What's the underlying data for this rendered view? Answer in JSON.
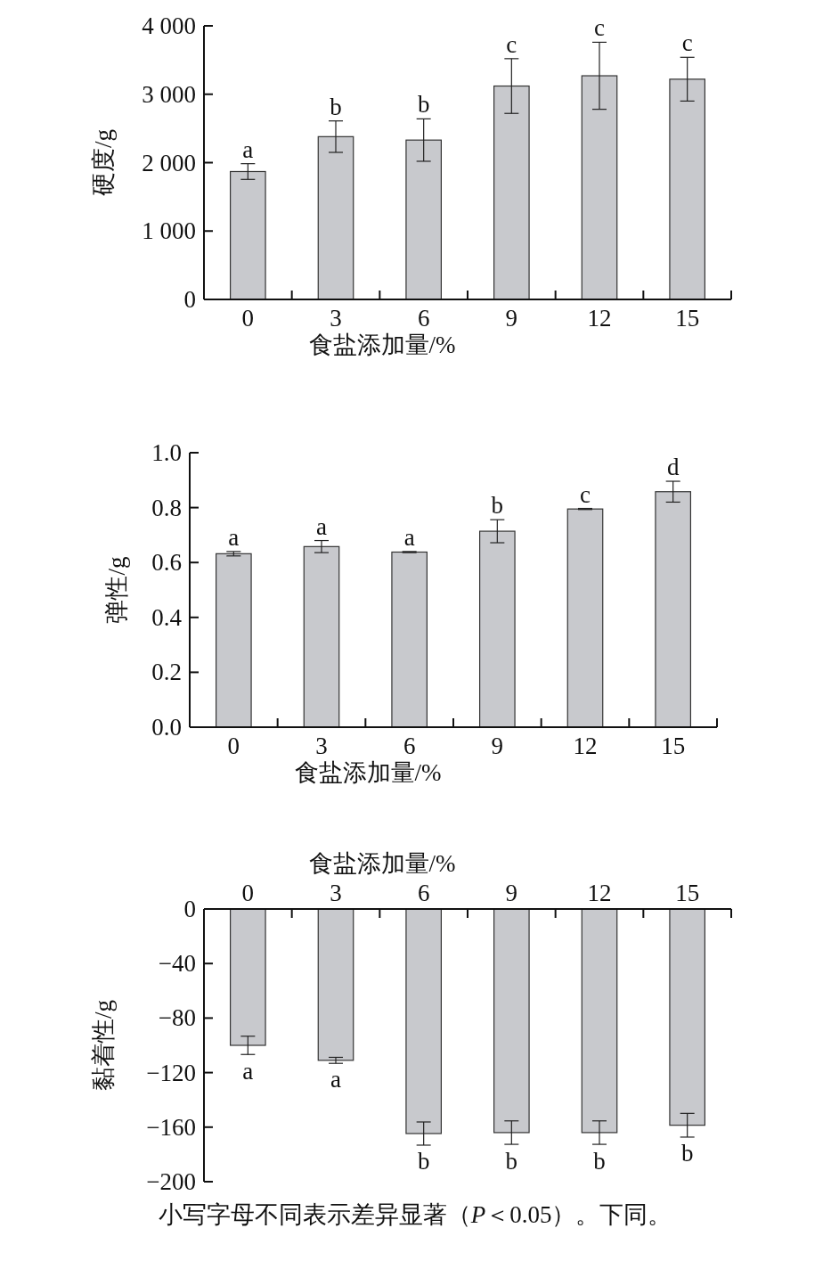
{
  "chart_data": [
    {
      "type": "bar",
      "xlabel": "食盐添加量/%",
      "ylabel": "硬度/g",
      "categories": [
        "0",
        "3",
        "6",
        "9",
        "12",
        "15"
      ],
      "values": [
        1870,
        2380,
        2330,
        3120,
        3270,
        3220
      ],
      "errors": [
        115,
        230,
        310,
        400,
        490,
        320
      ],
      "color": "#c8c9cd",
      "ylim": [
        0,
        4000
      ],
      "yticks": [
        0,
        {
          "value": 1000,
          "label": "1 000"
        },
        {
          "value": 2000,
          "label": "2 000"
        },
        {
          "value": 3000,
          "label": "3 000"
        },
        {
          "value": 4000,
          "label": "4 000"
        }
      ],
      "annotations": [
        {
          "text": "a",
          "x": "0",
          "y": 1985
        },
        {
          "text": "b",
          "x": "3",
          "y": 2610
        },
        {
          "text": "b",
          "x": "6",
          "y": 2640
        },
        {
          "text": "c",
          "x": "9",
          "y": 3520
        },
        {
          "text": "c",
          "x": "12",
          "y": 3760
        },
        {
          "text": "c",
          "x": "15",
          "y": 3540
        }
      ]
    },
    {
      "type": "bar",
      "xlabel": "食盐添加量/%",
      "ylabel": "弹性/g",
      "categories": [
        "0",
        "3",
        "6",
        "9",
        "12",
        "15"
      ],
      "values": [
        0.632,
        0.658,
        0.638,
        0.714,
        0.795,
        0.858
      ],
      "errors": [
        0.008,
        0.022,
        0.002,
        0.042,
        0.002,
        0.038
      ],
      "color": "#c8c9cd",
      "ylim": [
        0,
        1
      ],
      "yticks": [
        {
          "value": 0,
          "label": "0.0"
        },
        0.2,
        0.4,
        0.6,
        0.8,
        {
          "value": 1,
          "label": "1.0"
        }
      ],
      "annotations": [
        {
          "text": "a",
          "x": "0",
          "y": 0.64
        },
        {
          "text": "a",
          "x": "3",
          "y": 0.68
        },
        {
          "text": "a",
          "x": "6",
          "y": 0.64
        },
        {
          "text": "b",
          "x": "9",
          "y": 0.756
        },
        {
          "text": "c",
          "x": "12",
          "y": 0.797
        },
        {
          "text": "d",
          "x": "15",
          "y": 0.896
        }
      ]
    },
    {
      "type": "bar",
      "xlabel": "食盐添加量/%",
      "ylabel": "黏着性/g",
      "categories": [
        "0",
        "3",
        "6",
        "9",
        "12",
        "15"
      ],
      "values": [
        -100,
        -111,
        -164.7,
        -164,
        -164,
        -158.6
      ],
      "errors": [
        6.7,
        2.2,
        8.5,
        8.6,
        8.6,
        8.7
      ],
      "color": "#c8c9cd",
      "ylim": [
        -200,
        0
      ],
      "yticks": [
        {
          "value": -200,
          "label": "−200"
        },
        {
          "value": -160,
          "label": "−160"
        },
        {
          "value": -120,
          "label": "−120"
        },
        {
          "value": -80,
          "label": "−80"
        },
        {
          "value": -40,
          "label": "−40"
        },
        0
      ],
      "annotations": [
        {
          "text": "a",
          "x": "0",
          "y": -107
        },
        {
          "text": "a",
          "x": "3",
          "y": -113
        },
        {
          "text": "b",
          "x": "6",
          "y": -173
        },
        {
          "text": "b",
          "x": "9",
          "y": -173
        },
        {
          "text": "b",
          "x": "12",
          "y": -173
        },
        {
          "text": "b",
          "x": "15",
          "y": -167
        },
        "小写字母不同表示差异显著（*P*＜0.05）。下同。"
      ]
    }
  ]
}
